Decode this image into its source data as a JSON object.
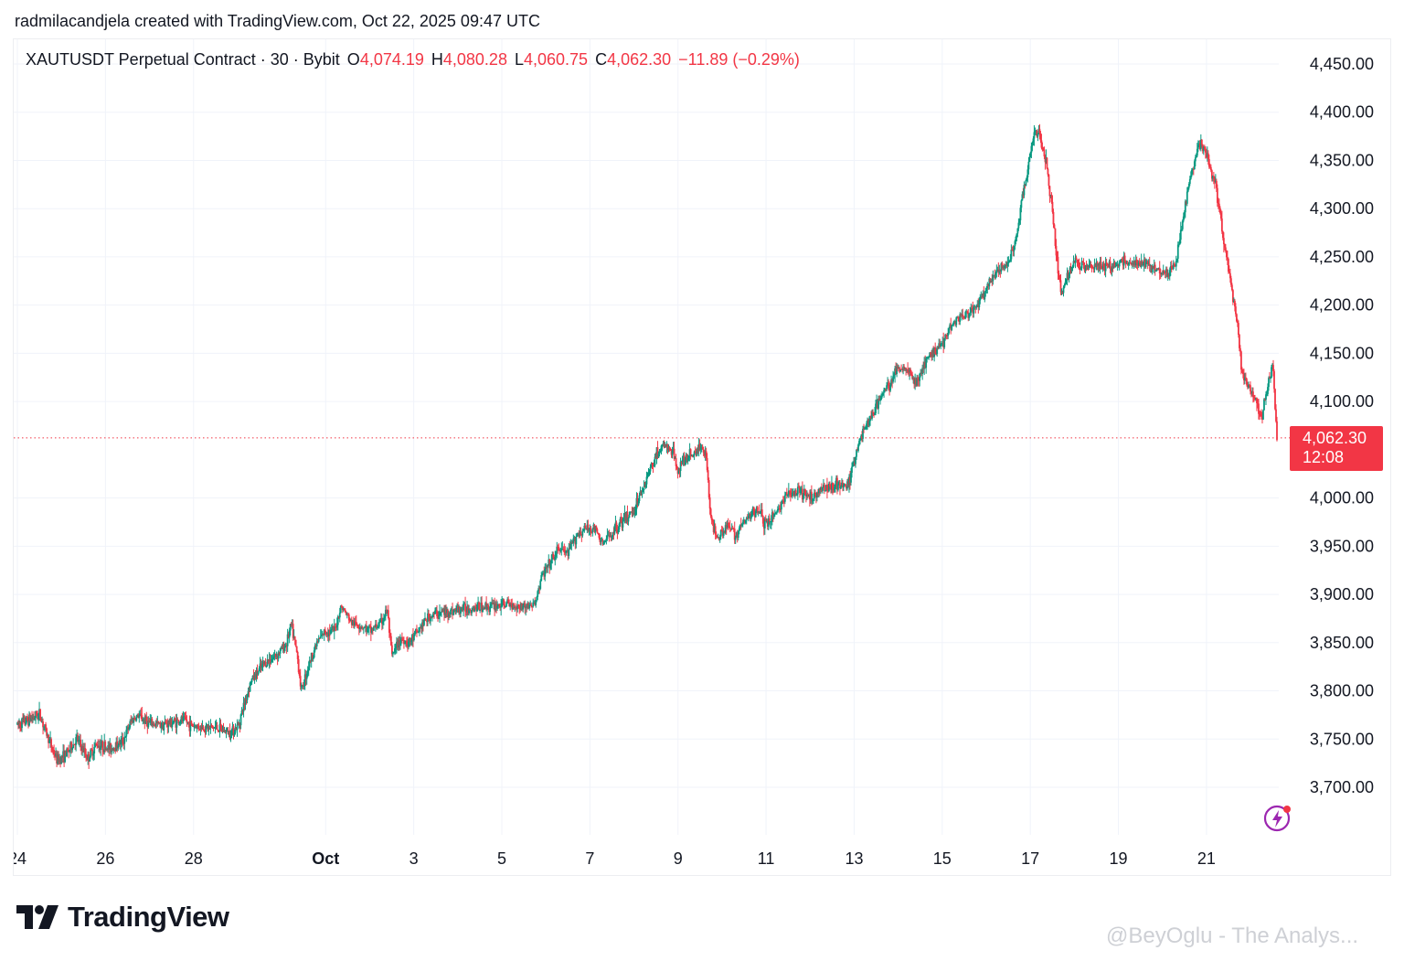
{
  "credit": "radmilacandjela created with TradingView.com, Oct 22, 2025 09:47 UTC",
  "legend": {
    "symbol": "XAUTUSDT Perpetual Contract · 30 · Bybit",
    "o_label": "O",
    "o_value": "4,074.19",
    "h_label": "H",
    "h_value": "4,080.28",
    "l_label": "L",
    "l_value": "4,060.75",
    "c_label": "C",
    "c_value": "4,062.30",
    "change": "−11.89 (−0.29%)"
  },
  "last_price": {
    "price": "4,062.30",
    "countdown": "12:08"
  },
  "brand": {
    "logo_text": "TradingView"
  },
  "watermark": "@BeyOglu - The Analys...",
  "colors": {
    "up": "#089981",
    "down": "#f23645",
    "grid": "#f0f3fa",
    "text": "#131722",
    "bolt": "#9c27b0"
  },
  "icons": {
    "logo": "tradingview-logo-icon",
    "bolt": "lightning-icon"
  },
  "chart_data": {
    "type": "candlestick",
    "interval": "30",
    "y_tick_labels": [
      "4,450.00",
      "4,400.00",
      "4,350.00",
      "4,300.00",
      "4,250.00",
      "4,200.00",
      "4,150.00",
      "4,100.00",
      "4,000.00",
      "3,950.00",
      "3,900.00",
      "3,850.00",
      "3,800.00",
      "3,750.00",
      "3,700.00"
    ],
    "y_ticks": [
      4450,
      4400,
      4350,
      4300,
      4250,
      4200,
      4150,
      4100,
      4000,
      3950,
      3900,
      3850,
      3800,
      3750,
      3700
    ],
    "ylim": [
      3650,
      4470
    ],
    "x_tick_labels": [
      "24",
      "26",
      "28",
      "Oct",
      "3",
      "5",
      "7",
      "9",
      "11",
      "13",
      "15",
      "17",
      "19",
      "21"
    ],
    "x_ticks_day": [
      24,
      26,
      28,
      31,
      33,
      35,
      37,
      39,
      41,
      43,
      45,
      47,
      49,
      51
    ],
    "xlim_day": [
      24,
      52.6
    ],
    "path": [
      [
        24.0,
        3765
      ],
      [
        24.25,
        3770
      ],
      [
        24.5,
        3776
      ],
      [
        24.75,
        3745
      ],
      [
        24.9,
        3728
      ],
      [
        25.1,
        3734
      ],
      [
        25.35,
        3750
      ],
      [
        25.6,
        3730
      ],
      [
        25.8,
        3745
      ],
      [
        26.1,
        3740
      ],
      [
        26.4,
        3748
      ],
      [
        26.6,
        3770
      ],
      [
        26.75,
        3774
      ],
      [
        27.0,
        3766
      ],
      [
        27.3,
        3765
      ],
      [
        27.6,
        3768
      ],
      [
        27.8,
        3770
      ],
      [
        27.9,
        3765
      ],
      [
        28.2,
        3762
      ],
      [
        28.5,
        3762
      ],
      [
        28.8,
        3757
      ],
      [
        29.0,
        3762
      ],
      [
        29.3,
        3810
      ],
      [
        29.6,
        3828
      ],
      [
        29.9,
        3838
      ],
      [
        30.1,
        3848
      ],
      [
        30.22,
        3868
      ],
      [
        30.35,
        3838
      ],
      [
        30.45,
        3800
      ],
      [
        30.6,
        3825
      ],
      [
        30.8,
        3850
      ],
      [
        31.0,
        3862
      ],
      [
        31.2,
        3862
      ],
      [
        31.35,
        3888
      ],
      [
        31.6,
        3870
      ],
      [
        31.8,
        3868
      ],
      [
        32.0,
        3862
      ],
      [
        32.25,
        3870
      ],
      [
        32.4,
        3884
      ],
      [
        32.5,
        3835
      ],
      [
        32.7,
        3854
      ],
      [
        32.9,
        3850
      ],
      [
        33.1,
        3862
      ],
      [
        33.3,
        3875
      ],
      [
        33.5,
        3880
      ],
      [
        33.8,
        3882
      ],
      [
        34.1,
        3885
      ],
      [
        34.5,
        3887
      ],
      [
        34.8,
        3888
      ],
      [
        35.1,
        3890
      ],
      [
        35.4,
        3888
      ],
      [
        35.6,
        3888
      ],
      [
        35.75,
        3890
      ],
      [
        35.9,
        3918
      ],
      [
        36.1,
        3932
      ],
      [
        36.3,
        3948
      ],
      [
        36.5,
        3942
      ],
      [
        36.7,
        3962
      ],
      [
        36.9,
        3968
      ],
      [
        37.1,
        3968
      ],
      [
        37.3,
        3952
      ],
      [
        37.6,
        3970
      ],
      [
        37.8,
        3978
      ],
      [
        38.0,
        3988
      ],
      [
        38.2,
        4010
      ],
      [
        38.5,
        4045
      ],
      [
        38.7,
        4055
      ],
      [
        38.9,
        4045
      ],
      [
        39.0,
        4030
      ],
      [
        39.2,
        4042
      ],
      [
        39.4,
        4048
      ],
      [
        39.55,
        4055
      ],
      [
        39.65,
        4040
      ],
      [
        39.75,
        3975
      ],
      [
        39.9,
        3960
      ],
      [
        40.1,
        3972
      ],
      [
        40.3,
        3962
      ],
      [
        40.5,
        3975
      ],
      [
        40.7,
        3985
      ],
      [
        40.85,
        3990
      ],
      [
        40.95,
        3972
      ],
      [
        41.1,
        3978
      ],
      [
        41.3,
        3990
      ],
      [
        41.5,
        4005
      ],
      [
        41.8,
        4005
      ],
      [
        42.0,
        4000
      ],
      [
        42.3,
        4010
      ],
      [
        42.6,
        4015
      ],
      [
        42.8,
        4010
      ],
      [
        42.9,
        4018
      ],
      [
        43.0,
        4040
      ],
      [
        43.2,
        4070
      ],
      [
        43.4,
        4085
      ],
      [
        43.6,
        4105
      ],
      [
        43.8,
        4118
      ],
      [
        44.0,
        4135
      ],
      [
        44.2,
        4135
      ],
      [
        44.4,
        4118
      ],
      [
        44.6,
        4138
      ],
      [
        44.8,
        4152
      ],
      [
        45.0,
        4160
      ],
      [
        45.2,
        4180
      ],
      [
        45.4,
        4188
      ],
      [
        45.6,
        4190
      ],
      [
        45.8,
        4200
      ],
      [
        46.0,
        4215
      ],
      [
        46.2,
        4232
      ],
      [
        46.4,
        4240
      ],
      [
        46.55,
        4250
      ],
      [
        46.7,
        4275
      ],
      [
        46.85,
        4320
      ],
      [
        47.0,
        4355
      ],
      [
        47.1,
        4380
      ],
      [
        47.2,
        4378
      ],
      [
        47.35,
        4350
      ],
      [
        47.5,
        4300
      ],
      [
        47.6,
        4250
      ],
      [
        47.7,
        4210
      ],
      [
        47.8,
        4225
      ],
      [
        48.0,
        4245
      ],
      [
        48.2,
        4242
      ],
      [
        48.5,
        4240
      ],
      [
        48.8,
        4240
      ],
      [
        49.1,
        4245
      ],
      [
        49.4,
        4242
      ],
      [
        49.7,
        4242
      ],
      [
        49.9,
        4238
      ],
      [
        50.1,
        4232
      ],
      [
        50.3,
        4242
      ],
      [
        50.5,
        4300
      ],
      [
        50.7,
        4345
      ],
      [
        50.85,
        4368
      ],
      [
        51.0,
        4355
      ],
      [
        51.2,
        4325
      ],
      [
        51.35,
        4280
      ],
      [
        51.5,
        4235
      ],
      [
        51.7,
        4180
      ],
      [
        51.8,
        4130
      ],
      [
        52.0,
        4112
      ],
      [
        52.15,
        4098
      ],
      [
        52.25,
        4082
      ],
      [
        52.35,
        4108
      ],
      [
        52.5,
        4140
      ],
      [
        52.6,
        4062
      ]
    ]
  }
}
